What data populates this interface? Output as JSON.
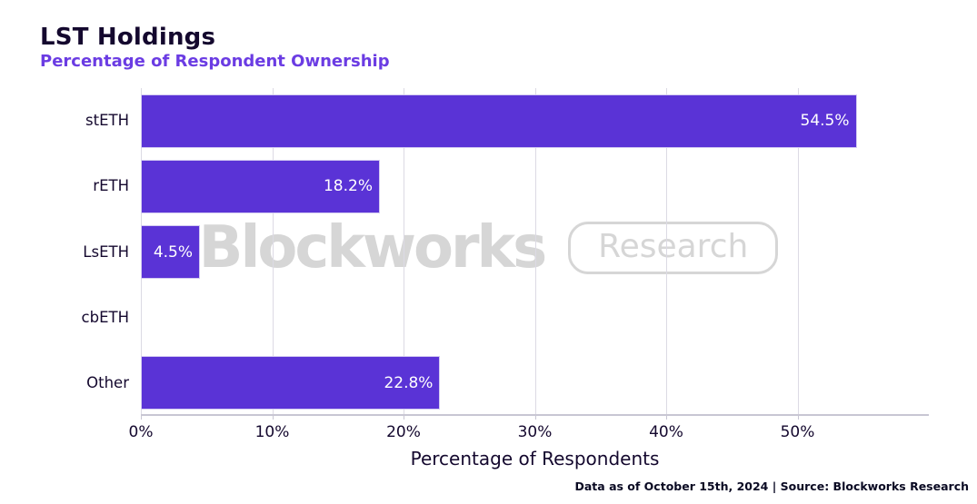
{
  "header": {
    "title": "LST Holdings",
    "subtitle": "Percentage of Respondent Ownership"
  },
  "watermark": {
    "brand": "Blockworks",
    "badge": "Research"
  },
  "footer": {
    "text": "Data as of October 15th, 2024 | Source: Blockworks Research"
  },
  "colors": {
    "background": "#ffffff",
    "bar": "#5a33d6",
    "bar_edge": "#d3cbf1",
    "title": "#14082e",
    "subtitle": "#6b3ce3",
    "axis_text": "#14082e",
    "gridline": "#dcdae4",
    "axis_line": "#c8c6d3",
    "value_label": "#ffffff",
    "watermark": "#d6d6d6"
  },
  "chart_data": {
    "type": "bar",
    "orientation": "horizontal",
    "title": "LST Holdings",
    "subtitle": "Percentage of Respondent Ownership",
    "categories": [
      "stETH",
      "rETH",
      "LsETH",
      "cbETH",
      "Other"
    ],
    "values": [
      54.5,
      18.2,
      4.5,
      0.0,
      22.8
    ],
    "value_labels": [
      "54.5%",
      "18.2%",
      "4.5%",
      "",
      "22.8%"
    ],
    "xlabel": "Percentage of Respondents",
    "ylabel": "",
    "xlim": [
      0,
      60
    ],
    "xticks": [
      0,
      10,
      20,
      30,
      40,
      50
    ],
    "xtick_labels": [
      "0%",
      "10%",
      "20%",
      "30%",
      "40%",
      "50%"
    ],
    "grid": "vertical-only",
    "legend": "none",
    "bar_label_position": "inside-right"
  }
}
